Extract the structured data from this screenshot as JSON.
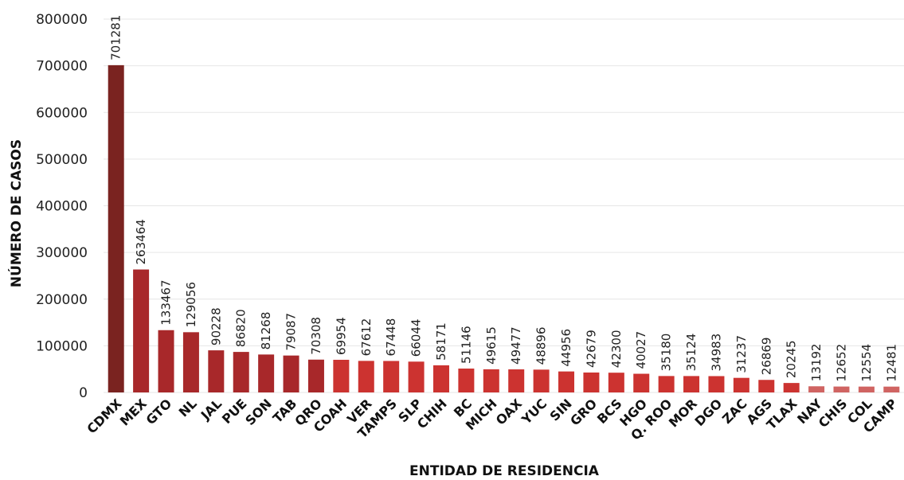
{
  "chart_data": {
    "type": "bar",
    "title": "",
    "xlabel": "ENTIDAD DE RESIDENCIA",
    "ylabel": "NÚMERO DE CASOS",
    "ylim": [
      0,
      800000
    ],
    "yticks": [
      0,
      100000,
      200000,
      300000,
      400000,
      500000,
      600000,
      700000,
      800000
    ],
    "grid": "horizontal",
    "categories": [
      "CDMX",
      "MEX",
      "GTO",
      "NL",
      "JAL",
      "PUE",
      "SON",
      "TAB",
      "QRO",
      "COAH",
      "VER",
      "TAMPS",
      "SLP",
      "CHIH",
      "BC",
      "MICH",
      "OAX",
      "YUC",
      "SIN",
      "GRO",
      "BCS",
      "HGO",
      "Q. ROO",
      "MOR",
      "DGO",
      "ZAC",
      "AGS",
      "TLAX",
      "NAY",
      "CHIS",
      "COL",
      "CAMP"
    ],
    "values": [
      701281,
      263464,
      133467,
      129056,
      90228,
      86820,
      81268,
      79087,
      70308,
      69954,
      67612,
      67448,
      66044,
      58171,
      51146,
      49615,
      49477,
      48896,
      44956,
      42679,
      42300,
      40027,
      35180,
      35124,
      34983,
      31237,
      26869,
      20245,
      13192,
      12652,
      12554,
      12481
    ],
    "colors": {
      "darkest": "#7a2320",
      "dark": "#a8282a",
      "mid": "#cc3330",
      "light": "#d06462",
      "grid": "#e6e6e6"
    }
  }
}
